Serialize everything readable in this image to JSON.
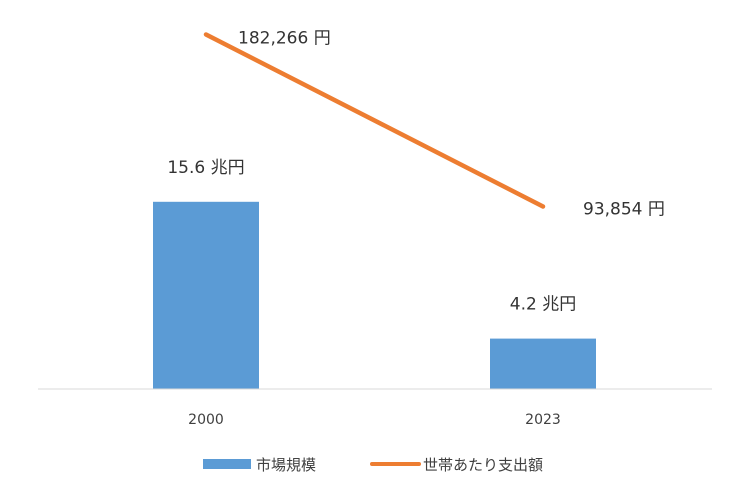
{
  "chart_data": {
    "type": "bar",
    "categories": [
      "2000",
      "2023"
    ],
    "series": [
      {
        "name": "市場規模",
        "type": "bar",
        "values": [
          15.6,
          4.2
        ],
        "labels": [
          "15.6 兆円",
          "4.2 兆円"
        ],
        "color": "#5B9BD5"
      },
      {
        "name": "世帯あたり支出額",
        "type": "line",
        "values": [
          182266,
          93854
        ],
        "labels": [
          "182,266 円",
          "93,854 円"
        ],
        "color": "#ED7D31"
      }
    ],
    "ylim_bar": [
      0,
      20
    ],
    "ylim_line": [
      0,
      200000
    ],
    "grid": false,
    "legend": "bottom"
  }
}
